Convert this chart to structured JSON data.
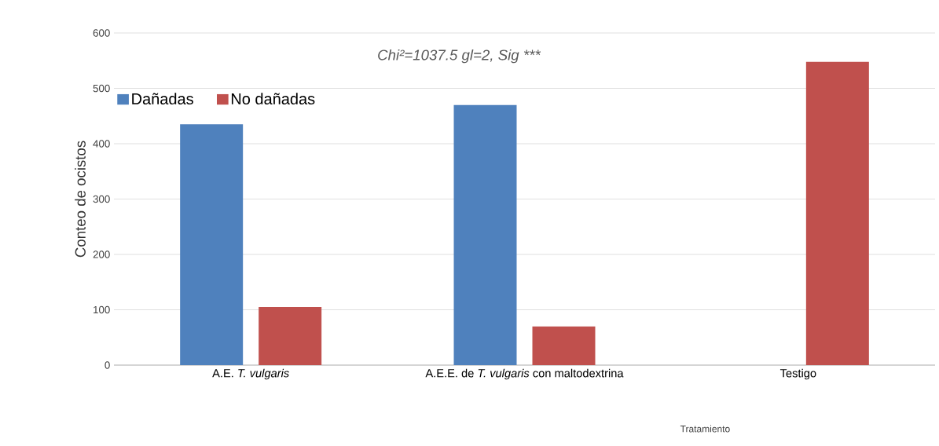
{
  "chart_data": {
    "type": "bar",
    "categories": [
      "A.E. *T. vulgaris*",
      "A.E.E. de *T. vulgaris* con maltodextrina",
      "Testigo"
    ],
    "series": [
      {
        "name": "Dañadas",
        "color": "#4f81bd",
        "values": [
          435,
          470,
          null
        ]
      },
      {
        "name": "No dañadas",
        "color": "#c0504d",
        "values": [
          105,
          70,
          548
        ]
      }
    ],
    "ylim": [
      0,
      600
    ],
    "yticks": [
      0,
      100,
      200,
      300,
      400,
      500,
      600
    ],
    "ylabel": "Conteo de ocistos",
    "xlabel": "Tratamiento",
    "annotations": [
      "Chi²=1037.5 gl=2,  Sig ***"
    ],
    "grid": "y",
    "legend": "top left"
  }
}
